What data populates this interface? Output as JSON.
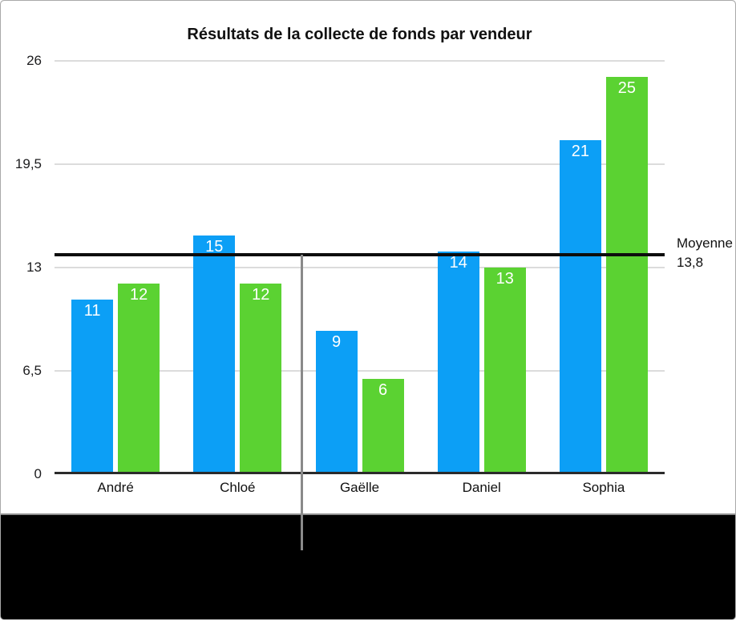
{
  "frame": {
    "border_color": "#a9a9a9",
    "divider_color": "#8e8e8e",
    "panel_background": "#ffffff",
    "background": "#000000"
  },
  "callout": {
    "color": "#8a8a8a"
  },
  "chart_data": {
    "type": "bar",
    "title": "Résultats de la collecte de fonds par vendeur",
    "categories": [
      "André",
      "Chloé",
      "Gaëlle",
      "Daniel",
      "Sophia"
    ],
    "series": [
      {
        "name": "serie-bleue",
        "color": "#0c9ff6",
        "values": [
          11,
          15,
          9,
          14,
          21
        ]
      },
      {
        "name": "serie-verte",
        "color": "#5bd232",
        "values": [
          12,
          12,
          6,
          13,
          25
        ]
      }
    ],
    "value_labels": true,
    "value_label_color": "#ffffff",
    "ylim": [
      0,
      26
    ],
    "y_ticks": [
      {
        "value": 0,
        "label": "0"
      },
      {
        "value": 6.5,
        "label": "6,5"
      },
      {
        "value": 13,
        "label": "13"
      },
      {
        "value": 19.5,
        "label": "19,5"
      },
      {
        "value": 26,
        "label": "26"
      }
    ],
    "grid": true,
    "gridline_color": "#dcdcdc",
    "axis_color": "#2b2b2b",
    "legend": "none",
    "average_line": {
      "value": 13.8,
      "color": "#0d0d0d",
      "label_title": "Moyenne",
      "label_value": "13,8"
    }
  }
}
